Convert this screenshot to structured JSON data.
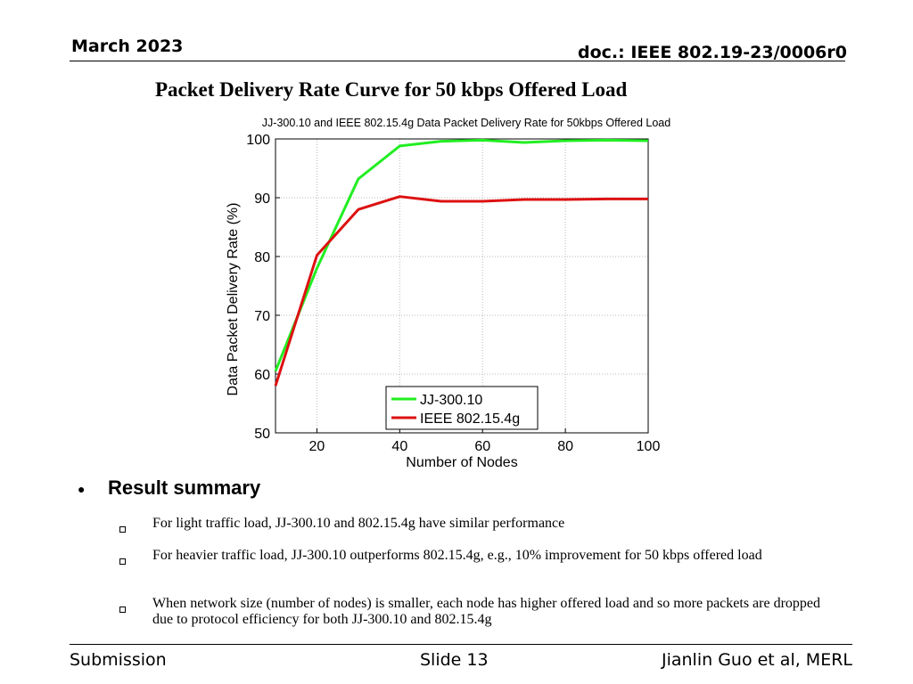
{
  "header": {
    "date": "March 2023",
    "doc": "doc.: IEEE 802.19-23/0006r0"
  },
  "slide_title": "Packet Delivery Rate Curve for 50 kbps Offered Load",
  "chart_data": {
    "type": "line",
    "title": "JJ-300.10 and IEEE 802.15.4g Data Packet Delivery Rate for 50kbps Offered Load",
    "xlabel": "Number of Nodes",
    "ylabel": "Data Packet Delivery Rate (%)",
    "xlim": [
      10,
      100
    ],
    "ylim": [
      50,
      100
    ],
    "xticks": [
      20,
      40,
      60,
      80,
      100
    ],
    "yticks": [
      50,
      60,
      70,
      80,
      90,
      100
    ],
    "grid": true,
    "legend_position": "bottom-right",
    "x": [
      10,
      20,
      30,
      40,
      50,
      60,
      70,
      80,
      90,
      100
    ],
    "series": [
      {
        "name": "JJ-300.10",
        "color": "#22ee22",
        "values": [
          60.5,
          78.0,
          93.2,
          98.8,
          99.6,
          99.8,
          99.4,
          99.7,
          99.8,
          99.7
        ]
      },
      {
        "name": "IEEE 802.15.4g",
        "color": "#dd1111",
        "values": [
          58.0,
          80.2,
          88.0,
          90.2,
          89.4,
          89.4,
          89.7,
          89.7,
          89.8,
          89.8
        ]
      }
    ]
  },
  "summary": {
    "bullet": "●",
    "heading": "Result summary",
    "items": [
      "For light traffic load, JJ-300.10 and 802.15.4g have similar performance",
      "For heavier traffic load, JJ-300.10 outperforms 802.15.4g, e.g., 10% improvement for 50 kbps offered load",
      "When network size (number of nodes) is smaller, each node has higher offered load and so more packets are dropped due to protocol efficiency for both JJ-300.10 and 802.15.4g"
    ]
  },
  "footer": {
    "left": "Submission",
    "center": "Slide 13",
    "right": "Jianlin Guo et al, MERL"
  }
}
